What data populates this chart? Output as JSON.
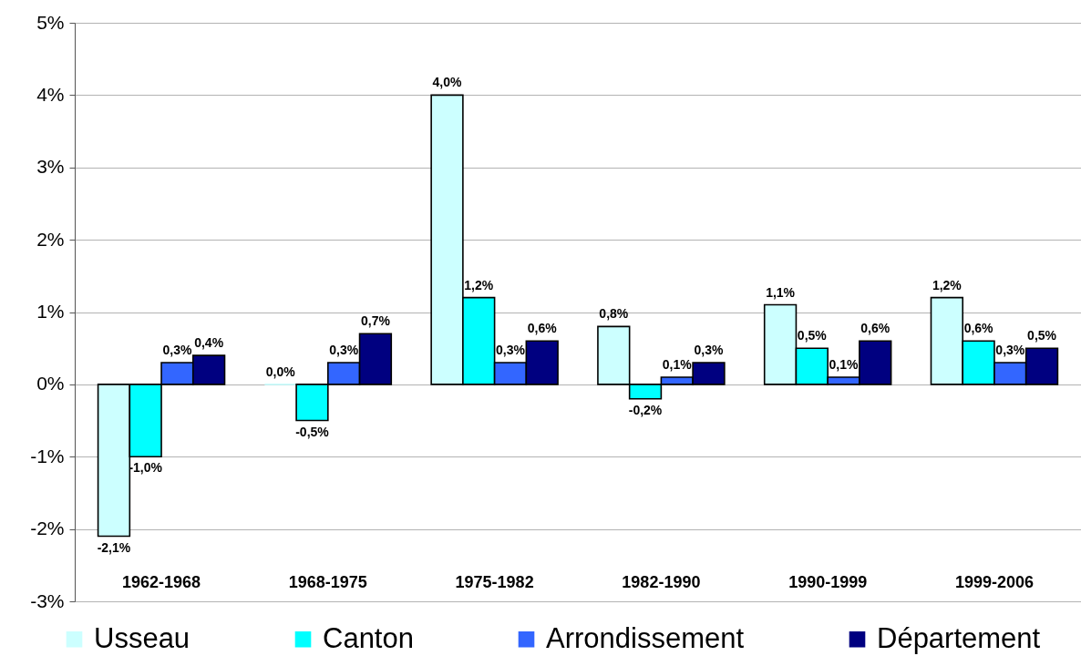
{
  "chart_data": {
    "type": "bar",
    "categories": [
      "1962-1968",
      "1968-1975",
      "1975-1982",
      "1982-1990",
      "1990-1999",
      "1999-2006"
    ],
    "series": [
      {
        "name": "Usseau",
        "color": "#ccffff",
        "values": [
          -2.1,
          0.0,
          4.0,
          0.8,
          1.1,
          1.2
        ],
        "value_labels": [
          "-2,1%",
          "0,0%",
          "4,0%",
          "0,8%",
          "1,1%",
          "1,2%"
        ]
      },
      {
        "name": "Canton",
        "color": "#00ffff",
        "values": [
          -1.0,
          -0.5,
          1.2,
          -0.2,
          0.5,
          0.6
        ],
        "value_labels": [
          "-1,0%",
          "-0,5%",
          "1,2%",
          "-0,2%",
          "0,5%",
          "0,6%"
        ]
      },
      {
        "name": "Arrondissement",
        "color": "#3366ff",
        "values": [
          0.3,
          0.3,
          0.3,
          0.1,
          0.1,
          0.3
        ],
        "value_labels": [
          "0,3%",
          "0,3%",
          "0,3%",
          "0,1%",
          "0,1%",
          "0,3%"
        ]
      },
      {
        "name": "Département",
        "color": "#000080",
        "values": [
          0.4,
          0.7,
          0.6,
          0.3,
          0.6,
          0.5
        ],
        "value_labels": [
          "0,4%",
          "0,7%",
          "0,6%",
          "0,3%",
          "0,6%",
          "0,5%"
        ]
      }
    ],
    "ylim": [
      -3,
      5
    ],
    "yticks": [
      {
        "value": -3,
        "label": "-3%"
      },
      {
        "value": -2,
        "label": "-2%"
      },
      {
        "value": -1,
        "label": "-1%"
      },
      {
        "value": 0,
        "label": "0%"
      },
      {
        "value": 1,
        "label": "1%"
      },
      {
        "value": 2,
        "label": "2%"
      },
      {
        "value": 3,
        "label": "3%"
      },
      {
        "value": 4,
        "label": "4%"
      },
      {
        "value": 5,
        "label": "5%"
      }
    ],
    "grid": "y",
    "legend": "bottom"
  }
}
